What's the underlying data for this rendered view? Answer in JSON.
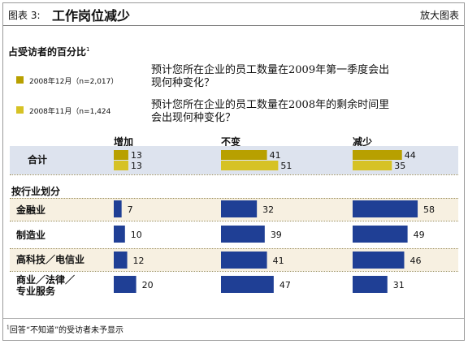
{
  "header": {
    "figure_number": "图表 3:",
    "title": "工作岗位减少",
    "enlarge_label": "放大图表"
  },
  "subtitle": "占受访者的百分比",
  "subtitle_note_mark": "1",
  "legend": [
    {
      "label": "2008年12月（n=2,017）",
      "question": "预计您所在企业的员工数量在2009年第一季度会出现何种变化？",
      "color": "#b8a000"
    },
    {
      "label": "2008年11月（n=1,424",
      "question": "预计您所在企业的员工数量在2008年的剩余时间里会出现何种变化？",
      "color": "#d6c225"
    }
  ],
  "chart_data": {
    "type": "bar",
    "orientation": "horizontal",
    "categories": [
      "增加",
      "不变",
      "减少"
    ],
    "total": {
      "label": "合计",
      "series": [
        {
          "name": "2008年12月（n=2,017）",
          "values": [
            13,
            41,
            44
          ]
        },
        {
          "name": "2008年11月（n=1,424",
          "values": [
            13,
            51,
            35
          ]
        }
      ]
    },
    "section_label": "按行业划分",
    "industries": [
      {
        "label": "金融业",
        "values": [
          7,
          32,
          58
        ],
        "shaded": true
      },
      {
        "label": "制造业",
        "values": [
          10,
          39,
          49
        ],
        "shaded": false
      },
      {
        "label": "高科技／电信业",
        "values": [
          12,
          41,
          46
        ],
        "shaded": true
      },
      {
        "label": "商业／法律／专业服务",
        "lines": [
          "商业／法律／",
          "专业服务"
        ],
        "values": [
          20,
          47,
          31
        ],
        "shaded": false
      }
    ],
    "colors": {
      "industry": "#1f3f95",
      "dec": "#b8a000",
      "nov": "#d6c225"
    },
    "xlim": [
      0,
      100
    ]
  },
  "footnote": "回答“不知道”的受访者未予显示",
  "footnote_mark": "1"
}
